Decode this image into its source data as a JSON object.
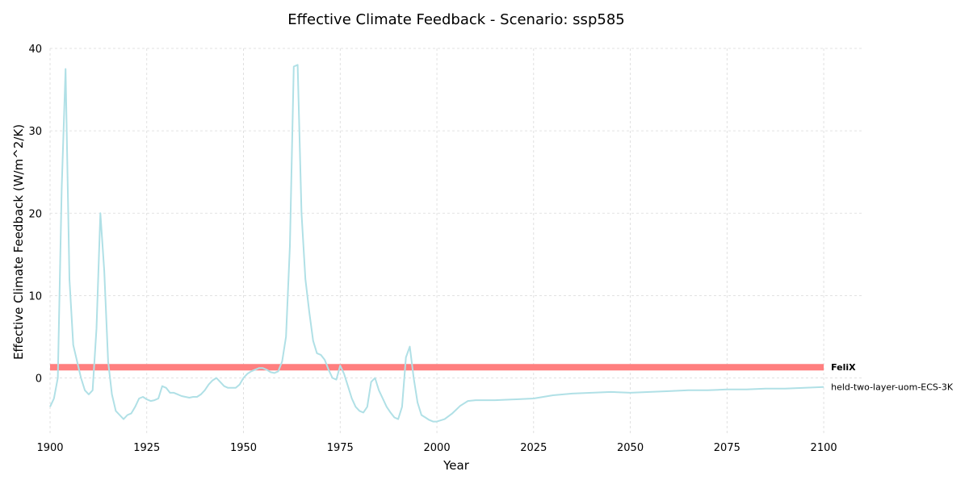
{
  "chart_data": {
    "type": "line",
    "title": "Effective Climate Feedback - Scenario: ssp585",
    "xlabel": "Year",
    "ylabel": "Effective Climate Feedback (W/m^2/K)",
    "xlim": [
      1900,
      2110
    ],
    "ylim": [
      -7,
      40
    ],
    "xticks": [
      1900,
      1925,
      1950,
      1975,
      2000,
      2025,
      2050,
      2075,
      2100
    ],
    "yticks": [
      0,
      10,
      20,
      30,
      40
    ],
    "grid": true,
    "series": [
      {
        "name": "FeliX",
        "color": "#ff7f7f",
        "x": [
          1900,
          2100
        ],
        "y": [
          1.3,
          1.3
        ]
      },
      {
        "name": "held-two-layer-uom-ECS-3K",
        "color": "#b0e0e6",
        "x": [
          1900,
          1901,
          1902,
          1903,
          1904,
          1905,
          1906,
          1907,
          1908,
          1909,
          1910,
          1911,
          1912,
          1913,
          1914,
          1915,
          1916,
          1917,
          1918,
          1919,
          1920,
          1921,
          1922,
          1923,
          1924,
          1925,
          1926,
          1927,
          1928,
          1929,
          1930,
          1931,
          1932,
          1933,
          1934,
          1935,
          1936,
          1937,
          1938,
          1939,
          1940,
          1941,
          1942,
          1943,
          1944,
          1945,
          1946,
          1947,
          1948,
          1949,
          1950,
          1951,
          1952,
          1953,
          1954,
          1955,
          1956,
          1957,
          1958,
          1959,
          1960,
          1961,
          1962,
          1963,
          1964,
          1965,
          1966,
          1967,
          1968,
          1969,
          1970,
          1971,
          1972,
          1973,
          1974,
          1975,
          1976,
          1977,
          1978,
          1979,
          1980,
          1981,
          1982,
          1983,
          1984,
          1985,
          1986,
          1987,
          1988,
          1989,
          1990,
          1991,
          1992,
          1993,
          1994,
          1995,
          1996,
          1997,
          1998,
          1999,
          2000,
          2002,
          2004,
          2006,
          2008,
          2010,
          2015,
          2020,
          2025,
          2030,
          2035,
          2040,
          2045,
          2050,
          2055,
          2060,
          2065,
          2070,
          2075,
          2080,
          2085,
          2090,
          2095,
          2100
        ],
        "y": [
          -3.5,
          -2.5,
          0.0,
          23.0,
          37.5,
          12.0,
          4.0,
          2.0,
          0.0,
          -1.5,
          -2.0,
          -1.5,
          6.0,
          20.0,
          13.0,
          2.0,
          -2.0,
          -4.0,
          -4.5,
          -5.0,
          -4.5,
          -4.3,
          -3.5,
          -2.5,
          -2.3,
          -2.6,
          -2.8,
          -2.7,
          -2.5,
          -1.0,
          -1.2,
          -1.8,
          -1.8,
          -2.0,
          -2.2,
          -2.3,
          -2.4,
          -2.3,
          -2.3,
          -2.0,
          -1.5,
          -0.8,
          -0.3,
          0.0,
          -0.5,
          -1.0,
          -1.2,
          -1.2,
          -1.2,
          -0.8,
          0.0,
          0.5,
          0.8,
          1.0,
          1.2,
          1.2,
          1.0,
          0.7,
          0.6,
          0.8,
          2.0,
          5.0,
          16.0,
          37.8,
          38.0,
          20.0,
          12.0,
          8.0,
          4.5,
          3.0,
          2.8,
          2.2,
          1.0,
          0.0,
          -0.2,
          1.5,
          0.5,
          -1.0,
          -2.5,
          -3.5,
          -4.0,
          -4.2,
          -3.5,
          -0.5,
          0.0,
          -1.5,
          -2.5,
          -3.5,
          -4.2,
          -4.8,
          -5.0,
          -3.5,
          2.5,
          3.8,
          0.0,
          -3.0,
          -4.5,
          -4.8,
          -5.1,
          -5.3,
          -5.3,
          -5.0,
          -4.3,
          -3.4,
          -2.8,
          -2.7,
          -2.7,
          -2.6,
          -2.5,
          -2.1,
          -1.9,
          -1.8,
          -1.7,
          -1.8,
          -1.7,
          -1.6,
          -1.5,
          -1.5,
          -1.4,
          -1.4,
          -1.3,
          -1.3,
          -1.2,
          -1.1
        ]
      }
    ]
  }
}
